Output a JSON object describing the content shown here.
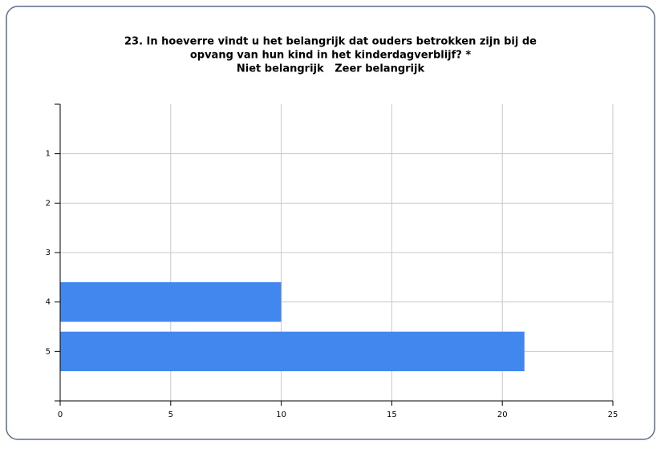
{
  "chart_data": {
    "type": "hbar",
    "title_lines": [
      "23. In hoeverre vindt u het belangrijk dat ouders betrokken zijn bij de",
      "opvang van hun kind in het kinderdagverblijf? *",
      "Niet belangrijk   Zeer belangrijk"
    ],
    "categories": [
      "1",
      "2",
      "3",
      "4",
      "5"
    ],
    "values": [
      0,
      0,
      0,
      10,
      21
    ],
    "color": "#4287ed",
    "xlim": [
      0,
      25
    ],
    "xticks": [
      0,
      5,
      10,
      15,
      20,
      25
    ],
    "grid": true
  }
}
